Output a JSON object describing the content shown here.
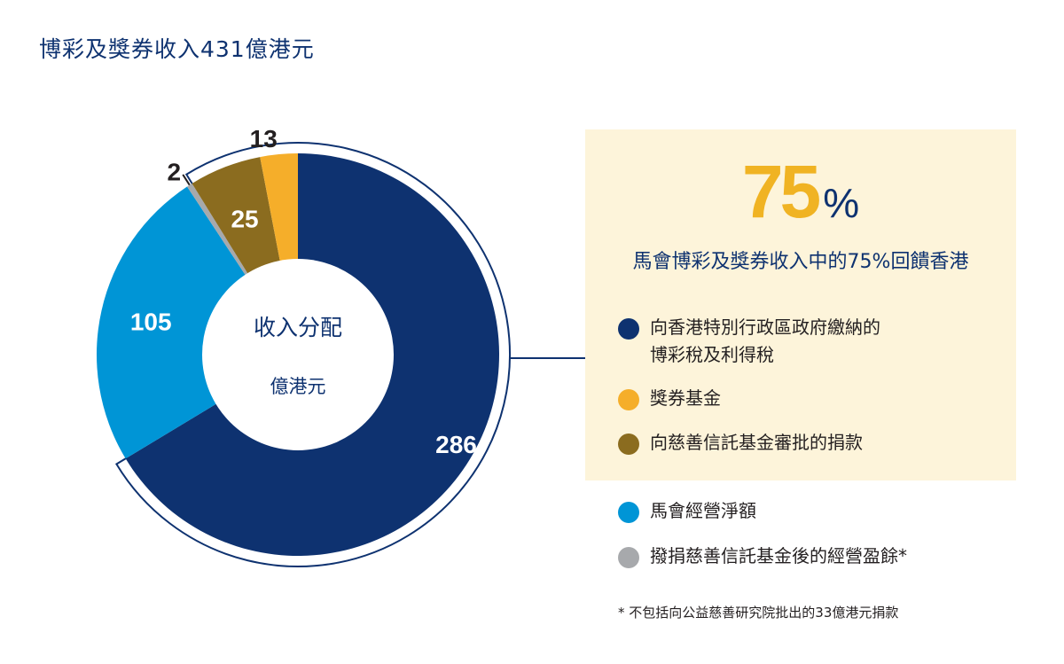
{
  "title": "博彩及獎券收入431億港元",
  "chart_data": {
    "type": "pie",
    "style": "donut",
    "title": "博彩及獎券收入431億港元",
    "center_label": "收入分配",
    "unit": "億港元",
    "total": 431,
    "slices": [
      {
        "label": "向香港特別行政區政府繳納的博彩稅及利得稅",
        "value": 286,
        "color": "#0e3270",
        "label_position": "inside"
      },
      {
        "label": "馬會經營淨額",
        "value": 105,
        "color": "#0095d6",
        "label_position": "inside"
      },
      {
        "label": "撥捐慈善信託基金後的經營盈餘*",
        "value": 2,
        "color": "#a7a9ac",
        "label_position": "outside"
      },
      {
        "label": "向慈善信託基金審批的捐款",
        "value": 25,
        "color": "#8b6c1f",
        "label_position": "inside"
      },
      {
        "label": "獎券基金",
        "value": 13,
        "color": "#f5ae2a",
        "label_position": "outside"
      }
    ]
  },
  "highlight": {
    "number": "75",
    "percent_sign": "%",
    "subtitle": "馬會博彩及獎券收入中的75%回饋香港"
  },
  "legend": [
    {
      "lines": [
        "向香港特別行政區政府繳納的",
        "博彩稅及利得稅"
      ],
      "color": "#0e3270"
    },
    {
      "lines": [
        "獎券基金"
      ],
      "color": "#f5ae2a"
    },
    {
      "lines": [
        "向慈善信託基金審批的捐款"
      ],
      "color": "#8b6c1f"
    },
    {
      "lines": [
        "馬會經營淨額"
      ],
      "color": "#0095d6"
    },
    {
      "lines": [
        "撥捐慈善信託基金後的經營盈餘*"
      ],
      "color": "#a7a9ac"
    }
  ],
  "footnote": "* 不包括向公益慈善研究院批出的33億港元捐款"
}
